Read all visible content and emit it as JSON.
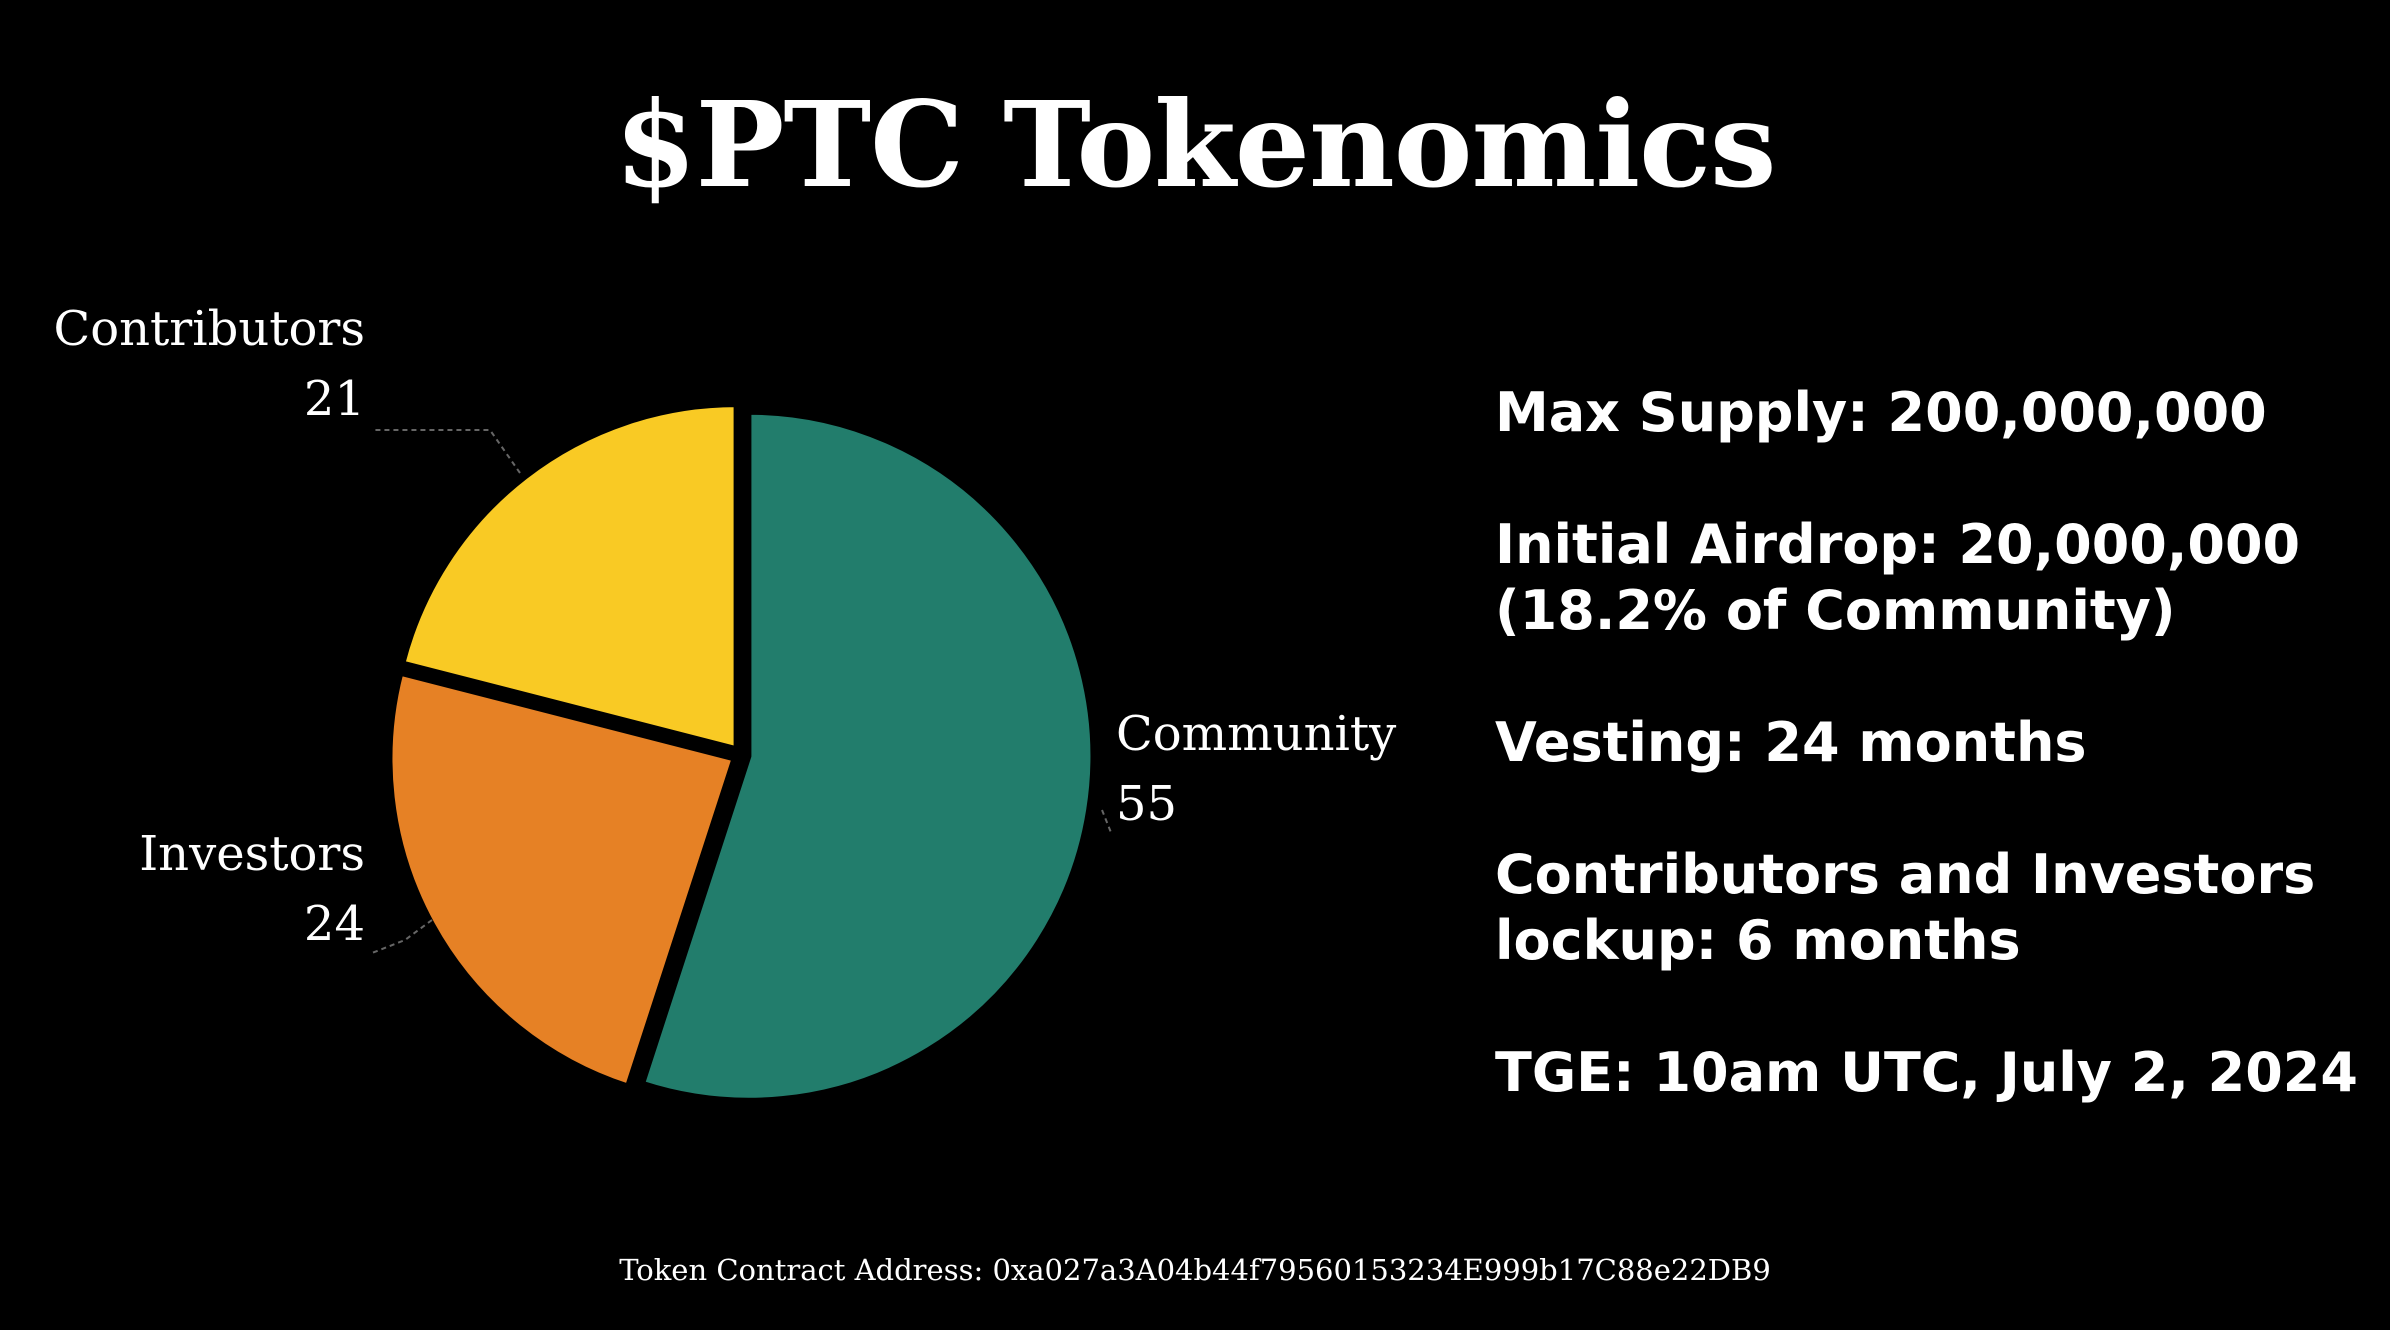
{
  "title": "$PTC Tokenomics",
  "chart_data": {
    "type": "pie",
    "categories": [
      "Community",
      "Investors",
      "Contributors"
    ],
    "values": [
      55,
      24,
      21
    ],
    "colors": [
      "#227D6C",
      "#E68125",
      "#F9CA24"
    ]
  },
  "info": {
    "max_supply": "Max Supply: 200,000,000",
    "airdrop_line1": "Initial Airdrop: 20,000,000",
    "airdrop_line2": "(18.2% of Community)",
    "vesting": "Vesting: 24 months",
    "lockup_line1": "Contributors and Investors",
    "lockup_line2": "lockup: 6 months",
    "tge": "TGE: 10am UTC, July 2, 2024"
  },
  "footer": "Token Contract Address: 0xa027a3A04b44f79560153234E999b17C88e22DB9"
}
